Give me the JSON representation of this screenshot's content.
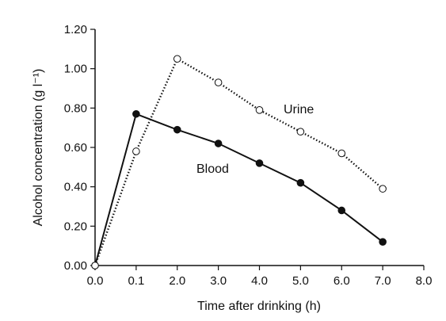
{
  "chart_data": {
    "type": "line",
    "xlabel": "Time after drinking (h)",
    "ylabel": "Alcohol concentration (g l⁻¹)",
    "x_tick_labels": [
      "0.0",
      "0.1",
      "2.0",
      "3.0",
      "4.0",
      "5.0",
      "6.0",
      "7.0",
      "8.0"
    ],
    "y_tick_labels": [
      "0.00",
      "0.20",
      "0.40",
      "0.60",
      "0.80",
      "1.00",
      "1.20"
    ],
    "ylim": [
      0,
      1.2
    ],
    "grid": false,
    "series": [
      {
        "name": "Blood",
        "line_style": "solid",
        "marker": "filled-circle",
        "color": "#111111",
        "x": [
          "0.0",
          "0.1",
          "2.0",
          "3.0",
          "4.0",
          "5.0",
          "6.0",
          "7.0"
        ],
        "values": [
          0.0,
          0.77,
          0.69,
          0.62,
          0.52,
          0.42,
          0.28,
          0.12
        ]
      },
      {
        "name": "Urine",
        "line_style": "dotted",
        "marker": "open-circle",
        "color": "#111111",
        "x": [
          "0.0",
          "0.1",
          "2.0",
          "3.0",
          "4.0",
          "5.0",
          "6.0",
          "7.0"
        ],
        "values": [
          0.0,
          0.58,
          1.05,
          0.93,
          0.79,
          0.68,
          0.57,
          0.39
        ]
      }
    ]
  }
}
